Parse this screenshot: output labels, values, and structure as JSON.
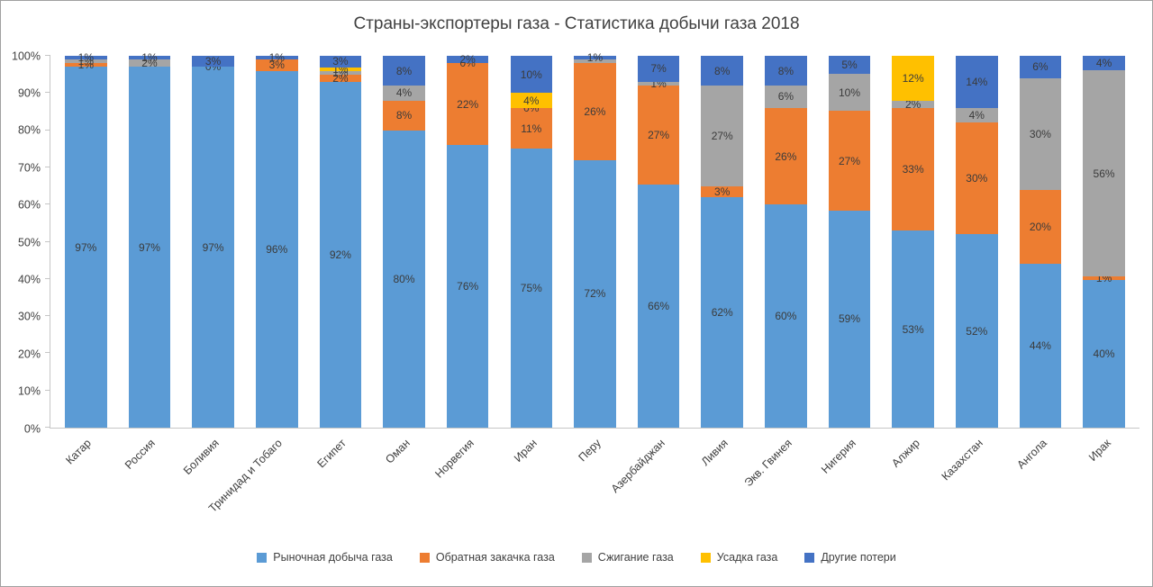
{
  "chart_data": {
    "type": "bar",
    "stacked": true,
    "stacked_100_percent": true,
    "title": "Страны-экспортеры газа - Статистика добычи газа 2018",
    "xlabel": "",
    "ylabel": "",
    "ylim": [
      0,
      100
    ],
    "y_ticks": [
      "0%",
      "10%",
      "20%",
      "30%",
      "40%",
      "50%",
      "60%",
      "70%",
      "80%",
      "90%",
      "100%"
    ],
    "grid": false,
    "legend_position": "bottom",
    "categories": [
      "Катар",
      "Россия",
      "Боливия",
      "Тринидад и Тобаго",
      "Египет",
      "Оман",
      "Норвегия",
      "Иран",
      "Перу",
      "Азербайджан",
      "Ливия",
      "Экв. Гвинея",
      "Нигерия",
      "Алжир",
      "Казахстан",
      "Ангола",
      "Ирак"
    ],
    "series": [
      {
        "name": "Рыночная добыча газа",
        "color": "#5B9BD5",
        "values": [
          97,
          97,
          97,
          96,
          92,
          80,
          76,
          75,
          72,
          66,
          62,
          60,
          59,
          53,
          52,
          44,
          40
        ],
        "labels": [
          "97%",
          "97%",
          "97%",
          "96%",
          "92%",
          "80%",
          "76%",
          "75%",
          "72%",
          "66%",
          "62%",
          "60%",
          "59%",
          "53%",
          "52%",
          "44%",
          "40%"
        ]
      },
      {
        "name": "Обратная закачка газа",
        "color": "#ED7D31",
        "values": [
          1,
          0,
          0,
          3,
          2,
          8,
          22,
          11,
          26,
          27,
          3,
          26,
          27,
          33,
          30,
          20,
          1
        ],
        "labels": [
          "1%",
          "",
          "0%",
          "3%",
          "2%",
          "8%",
          "22%",
          "11%",
          "26%",
          "27%",
          "3%",
          "26%",
          "27%",
          "33%",
          "30%",
          "20%",
          "1%"
        ]
      },
      {
        "name": "Сжигание газа",
        "color": "#A5A5A5",
        "values": [
          1,
          2,
          0,
          0,
          1,
          4,
          0,
          0,
          1,
          1,
          27,
          6,
          10,
          2,
          4,
          30,
          56
        ],
        "labels": [
          "1%",
          "2%",
          "",
          "",
          "1%",
          "4%",
          "0%",
          "0%",
          "",
          "1%",
          "27%",
          "6%",
          "10%",
          "2%",
          "4%",
          "30%",
          "56%"
        ]
      },
      {
        "name": "Усадка газа",
        "color": "#FFC000",
        "values": [
          0,
          0,
          0,
          0,
          1,
          0,
          0,
          4,
          0,
          0,
          0,
          0,
          0,
          12,
          0,
          0,
          0
        ],
        "labels": [
          "",
          "",
          "",
          "",
          "1%",
          "",
          "",
          "4%",
          "",
          "",
          "",
          "",
          "",
          "12%",
          "",
          "",
          ""
        ]
      },
      {
        "name": "Другие потери",
        "color": "#4472C4",
        "values": [
          1,
          1,
          3,
          1,
          3,
          8,
          2,
          10,
          1,
          7,
          8,
          8,
          5,
          0,
          14,
          6,
          4
        ],
        "labels": [
          "1%",
          "1%",
          "3%",
          "1%",
          "3%",
          "8%",
          "2%",
          "10%",
          "1%",
          "7%",
          "8%",
          "8%",
          "5%",
          "",
          "14%",
          "6%",
          "4%"
        ]
      }
    ]
  }
}
